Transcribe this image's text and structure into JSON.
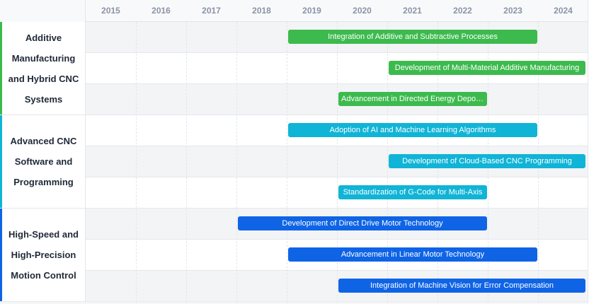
{
  "chart_data": {
    "type": "gantt",
    "years": [
      "2015",
      "2016",
      "2017",
      "2018",
      "2019",
      "2020",
      "2021",
      "2022",
      "2023",
      "2024"
    ],
    "groups": [
      {
        "name": "Additive Manufacturing and Hybrid CNC Systems",
        "color": "#3dba4e",
        "tasks": [
          {
            "label": "Integration of Additive and Subtractive Processes",
            "start": 2019,
            "end": 2024
          },
          {
            "label": "Development of Multi-Material Additive Manufacturing",
            "start": 2021,
            "end": 2025
          },
          {
            "label": "Advancement in Directed Energy Deposition",
            "start": 2020,
            "end": 2023
          }
        ]
      },
      {
        "name": "Advanced CNC Software and Programming",
        "color": "#10b4d6",
        "tasks": [
          {
            "label": "Adoption of AI and Machine Learning Algorithms",
            "start": 2019,
            "end": 2024
          },
          {
            "label": "Development of Cloud-Based CNC Programming",
            "start": 2021,
            "end": 2025
          },
          {
            "label": "Standardization of G-Code for Multi-Axis",
            "start": 2020,
            "end": 2023
          }
        ]
      },
      {
        "name": "High-Speed and High-Precision Motion Control",
        "color": "#0f64e6",
        "tasks": [
          {
            "label": "Development of Direct Drive Motor Technology",
            "start": 2018,
            "end": 2023
          },
          {
            "label": "Advancement in Linear Motor Technology",
            "start": 2019,
            "end": 2024
          },
          {
            "label": "Integration of Machine Vision for Error Compensation",
            "start": 2020,
            "end": 2025
          }
        ]
      }
    ],
    "grid": true
  }
}
